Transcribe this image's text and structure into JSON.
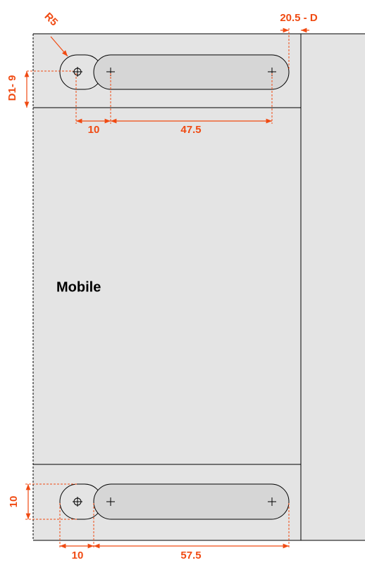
{
  "labels": {
    "radius": "R5",
    "offset": "20.5 - D",
    "height_top": "D1- 9",
    "gap_top": "10",
    "slot_top": "47.5",
    "device": "Mobile",
    "height_bottom": "10",
    "gap_bottom": "10",
    "slot_bottom": "57.5"
  }
}
